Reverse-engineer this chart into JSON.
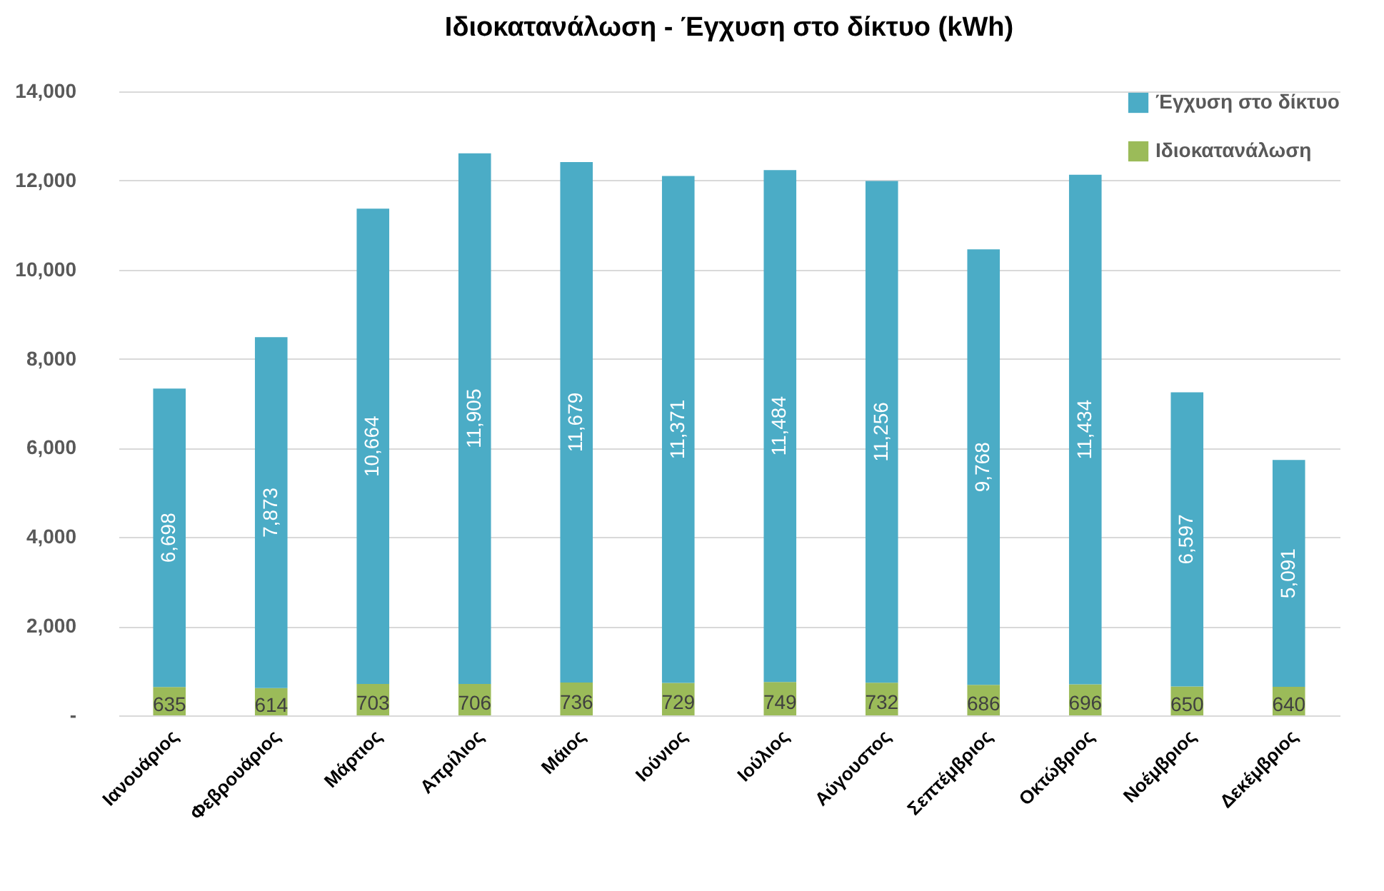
{
  "chart_data": {
    "type": "bar",
    "title": "Ιδιοκατανάλωση - Έγχυση στο δίκτυο (kWh)",
    "categories": [
      "Ιανουάριος",
      "Φεβρουάριος",
      "Μάρτιος",
      "Απρίλιος",
      "Μάιος",
      "Ιούνιος",
      "Ιούλιος",
      "Αύγουστος",
      "Σεπτέμβριος",
      "Οκτώβριος",
      "Νοέμβριος",
      "Δεκέμβριος"
    ],
    "series": [
      {
        "name": "Ιδιοκατανάλωση",
        "color": "#9bbb59",
        "values": [
          635,
          614,
          703,
          706,
          736,
          729,
          749,
          732,
          686,
          696,
          650,
          640
        ],
        "value_labels": [
          "635",
          "614",
          "703",
          "706",
          "736",
          "729",
          "749",
          "732",
          "686",
          "696",
          "650",
          "640"
        ]
      },
      {
        "name": "Έγχυση στο δίκτυο",
        "color": "#4bacc6",
        "values": [
          6698,
          7873,
          10664,
          11905,
          11679,
          11371,
          11484,
          11256,
          9768,
          11434,
          6597,
          5091
        ],
        "value_labels": [
          "6,698",
          "7,873",
          "10,664",
          "11,905",
          "11,679",
          "11,371",
          "11,484",
          "11,256",
          "9,768",
          "11,434",
          "6,597",
          "5,091"
        ]
      }
    ],
    "stacked": true,
    "ylim": [
      0,
      14000
    ],
    "yticks": [
      {
        "value": 0,
        "label": "-"
      },
      {
        "value": 2000,
        "label": "2,000"
      },
      {
        "value": 4000,
        "label": "4,000"
      },
      {
        "value": 6000,
        "label": "6,000"
      },
      {
        "value": 8000,
        "label": "8,000"
      },
      {
        "value": 10000,
        "label": "10,000"
      },
      {
        "value": 12000,
        "label": "12,000"
      },
      {
        "value": 14000,
        "label": "14,000"
      }
    ],
    "grid": "y",
    "legend": "top right"
  }
}
